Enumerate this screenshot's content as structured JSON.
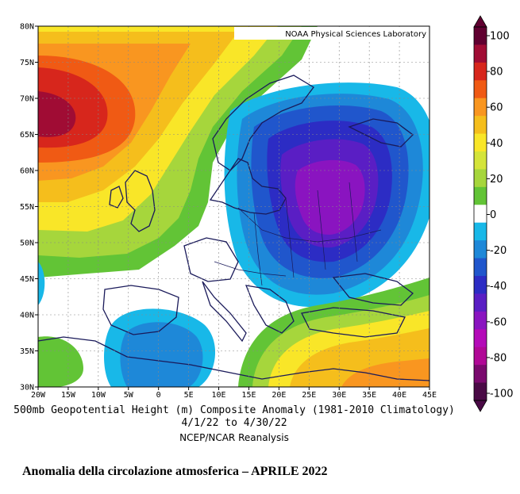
{
  "map": {
    "credit": "NOAA Physical Sciences Laboratory",
    "lat_labels": [
      "80N",
      "75N",
      "70N",
      "65N",
      "60N",
      "55N",
      "50N",
      "45N",
      "40N",
      "35N",
      "30N"
    ],
    "lon_labels": [
      "20W",
      "15W",
      "10W",
      "5W",
      "0",
      "5E",
      "10E",
      "15E",
      "20E",
      "25E",
      "30E",
      "35E",
      "40E",
      "45E"
    ],
    "lat_range": [
      30,
      80
    ],
    "lon_range": [
      -20,
      45
    ],
    "field": "500mb geopotential height anomaly (m)",
    "features": [
      {
        "type": "high",
        "lon": -20,
        "lat": 66,
        "value": 100
      },
      {
        "type": "low",
        "lon": 25,
        "lat": 56,
        "value": -70
      },
      {
        "type": "low",
        "lon": 0,
        "lat": 35,
        "value": -30
      },
      {
        "type": "high",
        "lon": 35,
        "lat": 32,
        "value": 60
      }
    ]
  },
  "caption": {
    "line1": "500mb Geopotential Height (m) Composite Anomaly (1981-2010 Climatology)",
    "line2": "4/1/22  to 4/30/22",
    "line3": "NCEP/NCAR Reanalysis"
  },
  "colorbar": {
    "labels": [
      "100",
      "80",
      "60",
      "40",
      "20",
      "0",
      "-20",
      "-40",
      "-60",
      "-80",
      "-100"
    ],
    "colors": [
      "#600030",
      "#a00c34",
      "#d7261c",
      "#f05a14",
      "#f99620",
      "#f5be1c",
      "#f9e628",
      "#d4e43a",
      "#a6d63c",
      "#62c436",
      "#ffffff",
      "#18b8e8",
      "#1e88d8",
      "#2056cc",
      "#2c2cc4",
      "#5a1ec4",
      "#8a14c0",
      "#b40ab8",
      "#b00896",
      "#7a0a6e",
      "#4a0a46"
    ]
  },
  "footer": "Anomalia della circolazione atmosferica – APRILE 2022"
}
